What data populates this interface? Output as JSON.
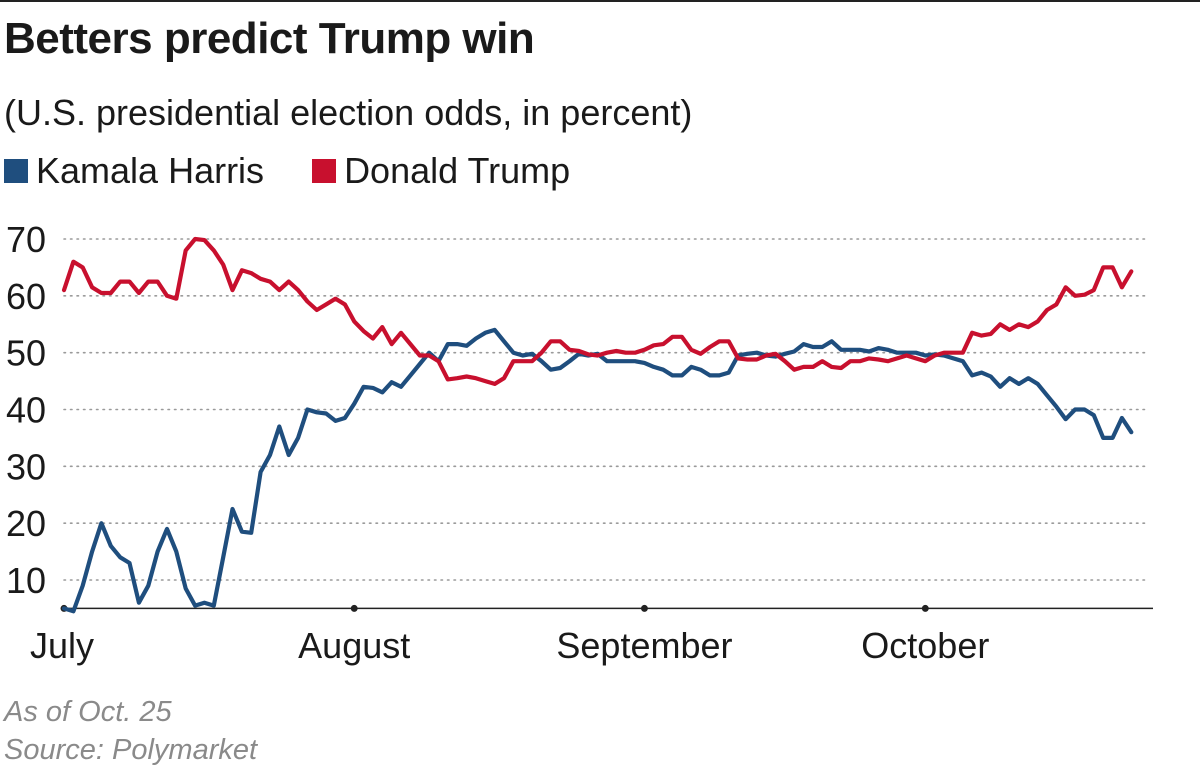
{
  "title": "Betters predict Trump win",
  "subtitle": "(U.S. presidential election odds, in percent)",
  "legend": [
    {
      "name": "Kamala Harris",
      "color": "#1f4e7e"
    },
    {
      "name": "Donald Trump",
      "color": "#c8102e"
    }
  ],
  "note": "As of Oct. 25",
  "source": "Source: Polymarket",
  "chart_data": {
    "type": "line",
    "title": "Betters predict Trump win",
    "subtitle": "(U.S. presidential election odds, in percent)",
    "xlabel": "",
    "ylabel": "",
    "ylim": [
      5,
      70
    ],
    "xlim": [
      0,
      116
    ],
    "x_unit": "days since July 1",
    "yticks": [
      10,
      20,
      30,
      40,
      50,
      60,
      70
    ],
    "grid": "horizontal dotted",
    "xticks": [
      {
        "label": "July",
        "x": 0
      },
      {
        "label": "August",
        "x": 31
      },
      {
        "label": "September",
        "x": 62
      },
      {
        "label": "October",
        "x": 92
      }
    ],
    "series": [
      {
        "name": "Kamala Harris",
        "color": "#1f4e7e",
        "points": [
          [
            0,
            5
          ],
          [
            1,
            4.5
          ],
          [
            2,
            9
          ],
          [
            3,
            15
          ],
          [
            4,
            20
          ],
          [
            5,
            16
          ],
          [
            6,
            14
          ],
          [
            7,
            13
          ],
          [
            8,
            6
          ],
          [
            9,
            9
          ],
          [
            10,
            15
          ],
          [
            11,
            19
          ],
          [
            12,
            15
          ],
          [
            13,
            8.5
          ],
          [
            14,
            5.5
          ],
          [
            15,
            6
          ],
          [
            16,
            5.5
          ],
          [
            17,
            14
          ],
          [
            18,
            22.5
          ],
          [
            19,
            18.5
          ],
          [
            20,
            18.3
          ],
          [
            21,
            29
          ],
          [
            22,
            32
          ],
          [
            23,
            37
          ],
          [
            24,
            32
          ],
          [
            25,
            35
          ],
          [
            26,
            40
          ],
          [
            27,
            39.5
          ],
          [
            28,
            39.3
          ],
          [
            29,
            38
          ],
          [
            30,
            38.5
          ],
          [
            31,
            41
          ],
          [
            32,
            44
          ],
          [
            33,
            43.8
          ],
          [
            34,
            43
          ],
          [
            35,
            44.8
          ],
          [
            36,
            44
          ],
          [
            37,
            46
          ],
          [
            38,
            48
          ],
          [
            39,
            50
          ],
          [
            40,
            48.5
          ],
          [
            41,
            51.5
          ],
          [
            42,
            51.5
          ],
          [
            43,
            51.2
          ],
          [
            44,
            52.5
          ],
          [
            45,
            53.5
          ],
          [
            46,
            54
          ],
          [
            47,
            52
          ],
          [
            48,
            50
          ],
          [
            49,
            49.5
          ],
          [
            50,
            49.8
          ],
          [
            51,
            48.5
          ],
          [
            52,
            47
          ],
          [
            53,
            47.3
          ],
          [
            54,
            48.5
          ],
          [
            55,
            49.8
          ],
          [
            56,
            49.5
          ],
          [
            57,
            49.8
          ],
          [
            58,
            48.5
          ],
          [
            59,
            48.5
          ],
          [
            60,
            48.5
          ],
          [
            61,
            48.5
          ],
          [
            62,
            48.2
          ],
          [
            63,
            47.5
          ],
          [
            64,
            47
          ],
          [
            65,
            46
          ],
          [
            66,
            46
          ],
          [
            67,
            47.5
          ],
          [
            68,
            47
          ],
          [
            69,
            46
          ],
          [
            70,
            46
          ],
          [
            71,
            46.5
          ],
          [
            72,
            49.5
          ],
          [
            73,
            49.8
          ],
          [
            74,
            50
          ],
          [
            75,
            49.5
          ],
          [
            76,
            49.3
          ],
          [
            77,
            49.8
          ],
          [
            78,
            50.2
          ],
          [
            79,
            51.5
          ],
          [
            80,
            51
          ],
          [
            81,
            51
          ],
          [
            82,
            52
          ],
          [
            83,
            50.5
          ],
          [
            84,
            50.5
          ],
          [
            85,
            50.5
          ],
          [
            86,
            50.2
          ],
          [
            87,
            50.8
          ],
          [
            88,
            50.5
          ],
          [
            89,
            50
          ],
          [
            90,
            50
          ],
          [
            91,
            50
          ],
          [
            92,
            49.5
          ],
          [
            93,
            49.7
          ],
          [
            94,
            49.5
          ],
          [
            95,
            49
          ],
          [
            96,
            48.5
          ],
          [
            97,
            46
          ],
          [
            98,
            46.5
          ],
          [
            99,
            45.8
          ],
          [
            100,
            44
          ],
          [
            101,
            45.5
          ],
          [
            102,
            44.5
          ],
          [
            103,
            45.5
          ],
          [
            104,
            44.5
          ],
          [
            105,
            42.5
          ],
          [
            106,
            40.5
          ],
          [
            107,
            38.3
          ],
          [
            108,
            40
          ],
          [
            109,
            40
          ],
          [
            110,
            39
          ],
          [
            111,
            35
          ],
          [
            112,
            35
          ],
          [
            113,
            38.5
          ],
          [
            114,
            36
          ]
        ]
      },
      {
        "name": "Donald Trump",
        "color": "#c8102e",
        "points": [
          [
            0,
            61
          ],
          [
            1,
            66
          ],
          [
            2,
            65
          ],
          [
            3,
            61.5
          ],
          [
            4,
            60.5
          ],
          [
            5,
            60.5
          ],
          [
            6,
            62.5
          ],
          [
            7,
            62.5
          ],
          [
            8,
            60.5
          ],
          [
            9,
            62.5
          ],
          [
            10,
            62.5
          ],
          [
            11,
            60
          ],
          [
            12,
            59.5
          ],
          [
            13,
            68
          ],
          [
            14,
            70
          ],
          [
            15,
            69.8
          ],
          [
            16,
            68
          ],
          [
            17,
            65.5
          ],
          [
            18,
            61
          ],
          [
            19,
            64.5
          ],
          [
            20,
            64
          ],
          [
            21,
            63
          ],
          [
            22,
            62.5
          ],
          [
            23,
            61
          ],
          [
            24,
            62.5
          ],
          [
            25,
            61
          ],
          [
            26,
            59
          ],
          [
            27,
            57.5
          ],
          [
            28,
            58.5
          ],
          [
            29,
            59.5
          ],
          [
            30,
            58.5
          ],
          [
            31,
            55.5
          ],
          [
            32,
            53.8
          ],
          [
            33,
            52.5
          ],
          [
            34,
            54.5
          ],
          [
            35,
            51.5
          ],
          [
            36,
            53.5
          ],
          [
            37,
            51.5
          ],
          [
            38,
            49.5
          ],
          [
            39,
            49.5
          ],
          [
            40,
            48.5
          ],
          [
            41,
            45.3
          ],
          [
            42,
            45.5
          ],
          [
            43,
            45.8
          ],
          [
            44,
            45.5
          ],
          [
            45,
            45
          ],
          [
            46,
            44.5
          ],
          [
            47,
            45.5
          ],
          [
            48,
            48.5
          ],
          [
            49,
            48.5
          ],
          [
            50,
            48.5
          ],
          [
            51,
            50
          ],
          [
            52,
            52
          ],
          [
            53,
            52
          ],
          [
            54,
            50.5
          ],
          [
            55,
            50.3
          ],
          [
            56,
            49.7
          ],
          [
            57,
            49.5
          ],
          [
            58,
            50
          ],
          [
            59,
            50.3
          ],
          [
            60,
            50
          ],
          [
            61,
            50
          ],
          [
            62,
            50.5
          ],
          [
            63,
            51.3
          ],
          [
            64,
            51.5
          ],
          [
            65,
            52.8
          ],
          [
            66,
            52.8
          ],
          [
            67,
            50.5
          ],
          [
            68,
            49.8
          ],
          [
            69,
            51
          ],
          [
            70,
            52
          ],
          [
            71,
            52
          ],
          [
            72,
            49
          ],
          [
            73,
            48.8
          ],
          [
            74,
            48.8
          ],
          [
            75,
            49.5
          ],
          [
            76,
            49.8
          ],
          [
            77,
            48.5
          ],
          [
            78,
            47
          ],
          [
            79,
            47.5
          ],
          [
            80,
            47.5
          ],
          [
            81,
            48.5
          ],
          [
            82,
            47.5
          ],
          [
            83,
            47.3
          ],
          [
            84,
            48.5
          ],
          [
            85,
            48.5
          ],
          [
            86,
            49
          ],
          [
            87,
            48.8
          ],
          [
            88,
            48.5
          ],
          [
            89,
            49
          ],
          [
            90,
            49.5
          ],
          [
            91,
            49
          ],
          [
            92,
            48.5
          ],
          [
            93,
            49.5
          ],
          [
            94,
            50
          ],
          [
            95,
            50
          ],
          [
            96,
            50
          ],
          [
            97,
            53.5
          ],
          [
            98,
            53
          ],
          [
            99,
            53.3
          ],
          [
            100,
            55
          ],
          [
            101,
            54
          ],
          [
            102,
            55
          ],
          [
            103,
            54.5
          ],
          [
            104,
            55.5
          ],
          [
            105,
            57.5
          ],
          [
            106,
            58.5
          ],
          [
            107,
            61.5
          ],
          [
            108,
            60
          ],
          [
            109,
            60.2
          ],
          [
            110,
            61
          ],
          [
            111,
            65
          ],
          [
            112,
            65
          ],
          [
            113,
            61.5
          ],
          [
            114,
            64.3
          ]
        ]
      }
    ]
  }
}
